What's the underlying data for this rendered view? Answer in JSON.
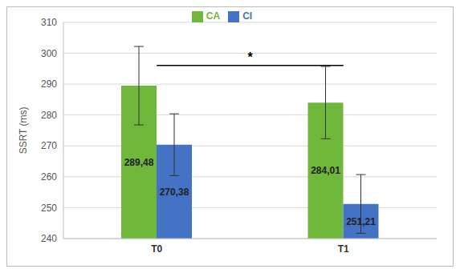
{
  "chart_data": {
    "type": "bar",
    "categories": [
      "T0",
      "T1"
    ],
    "y_label": "SSRT (ms)",
    "series": [
      {
        "name": "CA",
        "color": "#70b83c",
        "values": [
          289.48,
          284.01
        ],
        "value_labels": [
          "289,48",
          "284,01"
        ],
        "errors": [
          12.7,
          11.7
        ]
      },
      {
        "name": "CI",
        "color": "#4472c4",
        "values": [
          270.38,
          251.21
        ],
        "value_labels": [
          "270,38",
          "251,21"
        ],
        "errors": [
          10.0,
          9.5
        ]
      }
    ],
    "ylim": [
      240,
      310
    ],
    "yticks": [
      240,
      250,
      260,
      270,
      280,
      290,
      300,
      310
    ],
    "grid": true,
    "legend": "top",
    "data_labels": true,
    "annotations": [
      {
        "text": "*",
        "from": "T0",
        "to": "T1",
        "y": 296
      }
    ]
  }
}
